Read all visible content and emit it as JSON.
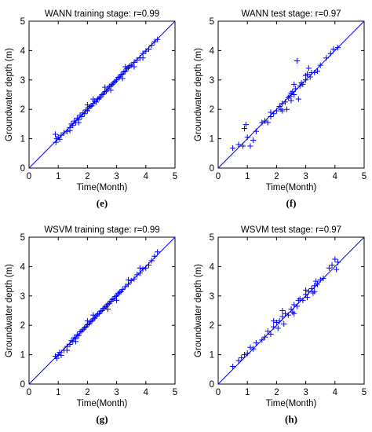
{
  "chart_data": [
    {
      "id": "e",
      "caption": "(e)",
      "type": "scatter",
      "title": "WANN training stage: r=0.99",
      "xlabel": "Time(Month)",
      "ylabel": "Groundwater depth (m)",
      "xlim": [
        0,
        5
      ],
      "ylim": [
        0,
        5
      ],
      "xticks": [
        "0",
        "1",
        "2",
        "3",
        "4",
        "5"
      ],
      "yticks": [
        "0",
        "1",
        "2",
        "3",
        "4",
        "5"
      ],
      "grid": false,
      "marker": "+",
      "color": "#0000ff",
      "reference_line": {
        "from": [
          0,
          0
        ],
        "to": [
          5,
          5
        ]
      },
      "points": [
        [
          0.9,
          1.15
        ],
        [
          0.92,
          0.88
        ],
        [
          0.95,
          1.0
        ],
        [
          1.0,
          1.05
        ],
        [
          1.05,
          0.98
        ],
        [
          1.1,
          1.12
        ],
        [
          1.2,
          1.2
        ],
        [
          1.3,
          1.25
        ],
        [
          1.4,
          1.38
        ],
        [
          1.45,
          1.5
        ],
        [
          1.5,
          1.45
        ],
        [
          1.55,
          1.6
        ],
        [
          1.6,
          1.55
        ],
        [
          1.65,
          1.7
        ],
        [
          1.7,
          1.65
        ],
        [
          1.75,
          1.8
        ],
        [
          1.8,
          1.75
        ],
        [
          1.85,
          1.88
        ],
        [
          1.9,
          1.85
        ],
        [
          1.95,
          1.98
        ],
        [
          2.0,
          1.95
        ],
        [
          2.05,
          2.05
        ],
        [
          2.1,
          2.1
        ],
        [
          2.15,
          2.12
        ],
        [
          2.2,
          2.2
        ],
        [
          2.25,
          2.28
        ],
        [
          2.3,
          2.25
        ],
        [
          2.35,
          2.35
        ],
        [
          2.4,
          2.38
        ],
        [
          2.45,
          2.42
        ],
        [
          2.5,
          2.5
        ],
        [
          2.55,
          2.52
        ],
        [
          2.6,
          2.6
        ],
        [
          2.65,
          2.62
        ],
        [
          2.7,
          2.7
        ],
        [
          2.75,
          2.78
        ],
        [
          2.8,
          2.8
        ],
        [
          2.85,
          2.85
        ],
        [
          2.9,
          2.9
        ],
        [
          2.95,
          2.95
        ],
        [
          3.0,
          3.0
        ],
        [
          3.05,
          3.08
        ],
        [
          3.1,
          3.1
        ],
        [
          3.15,
          3.18
        ],
        [
          3.2,
          3.2
        ],
        [
          3.25,
          3.28
        ],
        [
          3.3,
          3.3
        ],
        [
          3.35,
          3.38
        ],
        [
          3.4,
          3.42
        ],
        [
          3.45,
          3.48
        ],
        [
          3.5,
          3.5
        ],
        [
          3.6,
          3.6
        ],
        [
          3.7,
          3.68
        ],
        [
          3.8,
          3.75
        ],
        [
          3.9,
          3.9
        ],
        [
          4.0,
          3.98
        ],
        [
          4.1,
          4.05
        ],
        [
          4.2,
          4.18
        ],
        [
          4.3,
          4.3
        ],
        [
          4.4,
          4.38
        ],
        [
          1.7,
          1.55
        ],
        [
          2.2,
          2.35
        ],
        [
          2.8,
          2.65
        ],
        [
          3.3,
          3.45
        ],
        [
          3.6,
          3.45
        ],
        [
          2.0,
          2.15
        ],
        [
          1.4,
          1.28
        ],
        [
          2.6,
          2.75
        ],
        [
          3.9,
          3.75
        ],
        [
          3.2,
          3.05
        ]
      ]
    },
    {
      "id": "f",
      "caption": "(f)",
      "type": "scatter",
      "title": "WANN test stage: r=0.97",
      "xlabel": "Time(Month)",
      "ylabel": "Groundwater depth (m)",
      "xlim": [
        0,
        5
      ],
      "ylim": [
        0,
        5
      ],
      "xticks": [
        "0",
        "1",
        "2",
        "3",
        "4",
        "5"
      ],
      "yticks": [
        "0",
        "1",
        "2",
        "3",
        "4",
        "5"
      ],
      "grid": false,
      "marker": "+",
      "color": "#0000ff",
      "reference_line": {
        "from": [
          0,
          0
        ],
        "to": [
          5,
          5
        ]
      },
      "points": [
        [
          0.5,
          0.68
        ],
        [
          0.7,
          0.8
        ],
        [
          0.85,
          0.75
        ],
        [
          0.9,
          1.35
        ],
        [
          0.95,
          1.48
        ],
        [
          1.0,
          1.05
        ],
        [
          1.1,
          0.75
        ],
        [
          1.2,
          0.95
        ],
        [
          1.3,
          1.25
        ],
        [
          1.5,
          1.55
        ],
        [
          1.6,
          1.6
        ],
        [
          1.7,
          1.55
        ],
        [
          1.8,
          1.75
        ],
        [
          1.9,
          1.85
        ],
        [
          2.0,
          1.95
        ],
        [
          2.1,
          2.1
        ],
        [
          2.15,
          2.0
        ],
        [
          2.2,
          2.2
        ],
        [
          2.3,
          2.25
        ],
        [
          2.35,
          2.0
        ],
        [
          2.4,
          2.4
        ],
        [
          2.45,
          2.45
        ],
        [
          2.5,
          2.55
        ],
        [
          2.55,
          2.6
        ],
        [
          2.6,
          2.5
        ],
        [
          2.65,
          2.7
        ],
        [
          2.7,
          3.65
        ],
        [
          2.75,
          2.35
        ],
        [
          2.8,
          2.8
        ],
        [
          2.85,
          2.9
        ],
        [
          2.9,
          2.85
        ],
        [
          3.0,
          3.0
        ],
        [
          3.05,
          3.2
        ],
        [
          3.1,
          3.4
        ],
        [
          3.15,
          3.1
        ],
        [
          3.2,
          3.25
        ],
        [
          3.3,
          3.25
        ],
        [
          3.4,
          3.3
        ],
        [
          3.5,
          3.5
        ],
        [
          3.7,
          3.75
        ],
        [
          3.85,
          3.9
        ],
        [
          3.95,
          4.05
        ],
        [
          4.1,
          4.1
        ],
        [
          2.2,
          1.95
        ],
        [
          2.5,
          2.3
        ],
        [
          2.6,
          2.85
        ],
        [
          3.0,
          3.15
        ],
        [
          1.8,
          1.9
        ]
      ]
    },
    {
      "id": "g",
      "caption": "(g)",
      "type": "scatter",
      "title": "WSVM training stage: r=0.99",
      "xlabel": "Time(Month)",
      "ylabel": "Groundwater depth (m)",
      "xlim": [
        0,
        5
      ],
      "ylim": [
        0,
        5
      ],
      "xticks": [
        "0",
        "1",
        "2",
        "3",
        "4",
        "5"
      ],
      "yticks": [
        "0",
        "1",
        "2",
        "3",
        "4",
        "5"
      ],
      "grid": false,
      "marker": "+",
      "color": "#0000ff",
      "reference_line": {
        "from": [
          0,
          0
        ],
        "to": [
          5,
          5
        ]
      },
      "points": [
        [
          0.9,
          0.95
        ],
        [
          0.95,
          0.88
        ],
        [
          1.0,
          1.0
        ],
        [
          1.05,
          1.08
        ],
        [
          1.1,
          0.98
        ],
        [
          1.2,
          1.15
        ],
        [
          1.3,
          1.28
        ],
        [
          1.4,
          1.35
        ],
        [
          1.45,
          1.48
        ],
        [
          1.5,
          1.45
        ],
        [
          1.55,
          1.58
        ],
        [
          1.6,
          1.55
        ],
        [
          1.65,
          1.68
        ],
        [
          1.7,
          1.65
        ],
        [
          1.75,
          1.78
        ],
        [
          1.8,
          1.8
        ],
        [
          1.85,
          1.85
        ],
        [
          1.9,
          1.92
        ],
        [
          1.95,
          1.95
        ],
        [
          2.0,
          2.02
        ],
        [
          2.05,
          2.05
        ],
        [
          2.1,
          2.12
        ],
        [
          2.15,
          2.15
        ],
        [
          2.2,
          2.22
        ],
        [
          2.25,
          2.25
        ],
        [
          2.3,
          2.32
        ],
        [
          2.35,
          2.38
        ],
        [
          2.4,
          2.4
        ],
        [
          2.45,
          2.48
        ],
        [
          2.5,
          2.5
        ],
        [
          2.55,
          2.58
        ],
        [
          2.6,
          2.62
        ],
        [
          2.65,
          2.65
        ],
        [
          2.7,
          2.72
        ],
        [
          2.75,
          2.75
        ],
        [
          2.8,
          2.82
        ],
        [
          2.85,
          2.88
        ],
        [
          2.9,
          2.9
        ],
        [
          2.95,
          2.98
        ],
        [
          3.0,
          3.0
        ],
        [
          3.05,
          3.08
        ],
        [
          3.1,
          3.12
        ],
        [
          3.15,
          3.15
        ],
        [
          3.2,
          3.22
        ],
        [
          3.3,
          3.32
        ],
        [
          3.4,
          3.4
        ],
        [
          3.5,
          3.52
        ],
        [
          3.6,
          3.58
        ],
        [
          3.7,
          3.72
        ],
        [
          3.8,
          3.78
        ],
        [
          3.9,
          3.92
        ],
        [
          4.0,
          3.95
        ],
        [
          4.1,
          4.05
        ],
        [
          4.2,
          4.2
        ],
        [
          4.3,
          4.35
        ],
        [
          4.4,
          4.5
        ],
        [
          1.6,
          1.45
        ],
        [
          2.2,
          2.35
        ],
        [
          2.7,
          2.55
        ],
        [
          3.4,
          3.55
        ],
        [
          1.3,
          1.15
        ],
        [
          2.0,
          2.15
        ],
        [
          3.0,
          2.85
        ],
        [
          3.8,
          3.95
        ]
      ]
    },
    {
      "id": "h",
      "caption": "(h)",
      "type": "scatter",
      "title": "WSVM test stage: r=0.97",
      "xlabel": "Time(Month)",
      "ylabel": "Groundwater depth (m)",
      "xlim": [
        0,
        5
      ],
      "ylim": [
        0,
        5
      ],
      "xticks": [
        "0",
        "1",
        "2",
        "3",
        "4",
        "5"
      ],
      "yticks": [
        "0",
        "1",
        "2",
        "3",
        "4",
        "5"
      ],
      "grid": false,
      "marker": "+",
      "color": "#0000ff",
      "reference_line": {
        "from": [
          0,
          0
        ],
        "to": [
          5,
          5
        ]
      },
      "points": [
        [
          0.5,
          0.6
        ],
        [
          0.7,
          0.8
        ],
        [
          0.8,
          0.9
        ],
        [
          0.9,
          1.0
        ],
        [
          1.0,
          1.05
        ],
        [
          1.1,
          1.25
        ],
        [
          1.2,
          1.2
        ],
        [
          1.3,
          1.4
        ],
        [
          1.5,
          1.5
        ],
        [
          1.6,
          1.6
        ],
        [
          1.7,
          1.8
        ],
        [
          1.8,
          1.7
        ],
        [
          1.9,
          1.95
        ],
        [
          2.0,
          2.1
        ],
        [
          2.05,
          1.9
        ],
        [
          2.1,
          2.15
        ],
        [
          2.2,
          2.3
        ],
        [
          2.25,
          2.05
        ],
        [
          2.3,
          2.4
        ],
        [
          2.4,
          2.35
        ],
        [
          2.5,
          2.55
        ],
        [
          2.55,
          2.45
        ],
        [
          2.6,
          2.7
        ],
        [
          2.7,
          2.65
        ],
        [
          2.75,
          2.85
        ],
        [
          2.8,
          2.9
        ],
        [
          2.9,
          2.85
        ],
        [
          3.0,
          3.05
        ],
        [
          3.05,
          2.95
        ],
        [
          3.1,
          3.15
        ],
        [
          3.2,
          3.25
        ],
        [
          3.25,
          3.1
        ],
        [
          3.3,
          3.35
        ],
        [
          3.35,
          3.5
        ],
        [
          3.4,
          3.4
        ],
        [
          3.5,
          3.55
        ],
        [
          3.6,
          3.6
        ],
        [
          3.8,
          3.95
        ],
        [
          3.9,
          4.05
        ],
        [
          4.0,
          4.25
        ],
        [
          4.1,
          4.15
        ],
        [
          4.05,
          3.9
        ],
        [
          2.2,
          2.5
        ],
        [
          2.6,
          2.4
        ],
        [
          3.0,
          3.2
        ],
        [
          1.9,
          2.15
        ],
        [
          3.3,
          3.15
        ]
      ]
    }
  ]
}
